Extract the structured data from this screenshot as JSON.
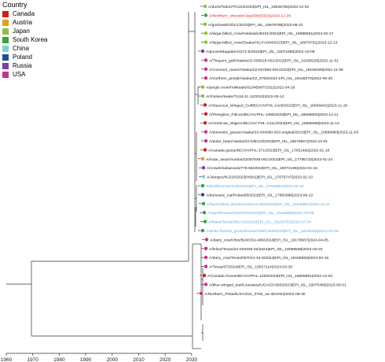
{
  "legend": {
    "title": "Country",
    "items": [
      {
        "label": "Canada",
        "color": "#cc1f1f"
      },
      {
        "label": "Austria",
        "color": "#e0a020"
      },
      {
        "label": "Japan",
        "color": "#8fbf3f"
      },
      {
        "label": "South Korea",
        "color": "#3aa23a"
      },
      {
        "label": "China",
        "color": "#7fd1cf"
      },
      {
        "label": "Poland",
        "color": "#1f4e99"
      },
      {
        "label": "Russia",
        "color": "#7a3fa6"
      },
      {
        "label": "USA",
        "color": "#c4338a"
      }
    ]
  },
  "axis": {
    "ticks": [
      "1960",
      "1970",
      "1980",
      "1990",
      "2000",
      "2010",
      "2020",
      "2030"
    ]
  },
  "tips": [
    {
      "label": "A/duck/Tottori/TG164/2023|EPI_ISL_18535785|2023-12-02",
      "country": "Japan",
      "highlight": ""
    },
    {
      "label": "A/Northern_shoveler/Jeju/D60/2023|2023-12-25",
      "country": "South Korea",
      "highlight": "#e02020"
    },
    {
      "label": "A/goshawk/Gifu/1/2023|EPI_ISL_18979788|2023-08-31",
      "country": "Japan",
      "highlight": ""
    },
    {
      "label": "A/large-billed_crow/Hokkaido/B101/2024|EPI_ISL_18988551|2024-02-17",
      "country": "Japan",
      "highlight": ""
    },
    {
      "label": "A/large-billed_crow/Osaka/HU-FA004/2023|EPI_ISL_18979791|2023-12-13",
      "country": "Japan",
      "highlight": ""
    },
    {
      "label": "A/goose/Magadan/2272-5/2022|EPI_ISL_18071580|2022-10-09",
      "country": "Russia",
      "highlight": ""
    },
    {
      "label": "A/Thayers_gull/Alaska/22-036618-001/2022|EPI_ISL_19158225|2022-11-01",
      "country": "USA",
      "highlight": ""
    },
    {
      "label": "A/common_raven/Alaska/22-037656-001/2022|EPI_ISL_19158199|2022-11-08",
      "country": "USA",
      "highlight": ""
    },
    {
      "label": "A/northern_pintail/Alaska/22_0783/2022 EPI_ISL_19158270|2022-09-30",
      "country": "USA",
      "highlight": ""
    },
    {
      "label": "A/jungle crow/Hokkaido/0104B087/2022|2022-04-28",
      "country": "Japan",
      "highlight": ""
    },
    {
      "label": "A/chicken/Iwate/TU16-11.12/2022|2022-02-12",
      "country": "Japan",
      "highlight": ""
    },
    {
      "label": "A/Glaucous_Winged_Gull/BC/AIVPHL-1426/2023|EPI_ISL_18665641|2023-11-20",
      "country": "Canada",
      "highlight": ""
    },
    {
      "label": "A/Peregrine_Falcon/BC/AIVPHL-1499/2023|EPI_ISL_18665600|2023-12-11",
      "country": "Canada",
      "highlight": ""
    },
    {
      "label": "A/American_Wigeon/BC/AIV PHL-1411/2023|EPI_ISL_18665599|2023-11-14",
      "country": "Canada",
      "highlight": ""
    },
    {
      "label": "A/domestic_goose/Alaska/23-034050-002-original/2023|EPI_ISL_18698983|2023-11-03",
      "country": "USA",
      "highlight": ""
    },
    {
      "label": "A/polar_bear/Alaska/23-038123/2023|EPI_ISL_18976667|2023-10-01",
      "country": "USA",
      "highlight": ""
    },
    {
      "label": "A/canada goose/BC/AIVPHL-371/2023|EPI_ISL_17051482|2023-01-18",
      "country": "Canada",
      "highlight": ""
    },
    {
      "label": "A/mute_swan/Austria/22007848-001/2022|EPI_ISL_17785732|2022-01-24",
      "country": "Austria",
      "highlight": ""
    },
    {
      "label": "A/crow/Khabarovsk/776-56/2022|EPI_ISL_18074199|2022-04-15",
      "country": "Russia",
      "highlight": ""
    },
    {
      "label": "A/Jiangsu/NJ210/2023(H5N1)|EPI_ISL_17075747|2023-02-10",
      "country": "China",
      "highlight": ""
    },
    {
      "label": "A/duck/Korea/H196/2022|EPI_ISL_17604861|2022-02-18",
      "country": "South Korea",
      "highlight": "#5aa9e6"
    },
    {
      "label": "A/domestic_cat/Poland/9/2023|EPI_ISL_17950986|2023-06-22",
      "country": "Poland",
      "highlight": ""
    },
    {
      "label": "A/Spot-billed_duck/Korea/K22-920/2022|EPI_ISL_15948867|2022-11-21",
      "country": "South Korea",
      "highlight": "#5aa9e6"
    },
    {
      "label": "A/egret/Korea/22WC603/2022|EPI_ISL_16246886|2022-03-06",
      "country": "South Korea",
      "highlight": "#5aa9e6"
    },
    {
      "label": "A/feline/Seoul/SNU-02/2023|EPI_ISL_18102701|2023-07-04",
      "country": "South Korea",
      "highlight": "#5aa9e6"
    },
    {
      "label": "A/white-fronted_goose/Korea/22WC363/2022|EPI_ISL_18245348|2022-01-06",
      "country": "South Korea",
      "highlight": "#5aa9e6"
    },
    {
      "label": "A/dairy_cow/Ohio/B24OSU-486/2024|EPI_ISL_19178087|2024-04-05",
      "country": "USA",
      "highlight": ""
    },
    {
      "label": "A/feline/Texas/24-029329-02/2024|EPI_ISL_19088568|2024-03-20",
      "country": "USA",
      "highlight": ""
    },
    {
      "label": "A/dairy_cow/Texas/067041-24-6/2024|EPI_ISL_19155868|2024-03-16",
      "country": "USA",
      "highlight": ""
    },
    {
      "label": "A/Texas/37/2024|EPI_ISL_19027114|2024-03-28",
      "country": "USA",
      "highlight": ""
    },
    {
      "label": "A/Canada Goose/BC/AIVPHL-1483/2023|EPI_ISL_18665591|2023-12-04",
      "country": "Canada",
      "highlight": ""
    },
    {
      "label": "A/blue-winged_teal/Louisiana/UGA/23-993/2023|EPI_ISL_19070499|2023-09-01",
      "country": "USA",
      "highlight": ""
    },
    {
      "label": "A/Northern_Pintail/USA/Z22_0760_sw ab/2022|2022-09-30",
      "country": "USA",
      "highlight": ""
    }
  ]
}
